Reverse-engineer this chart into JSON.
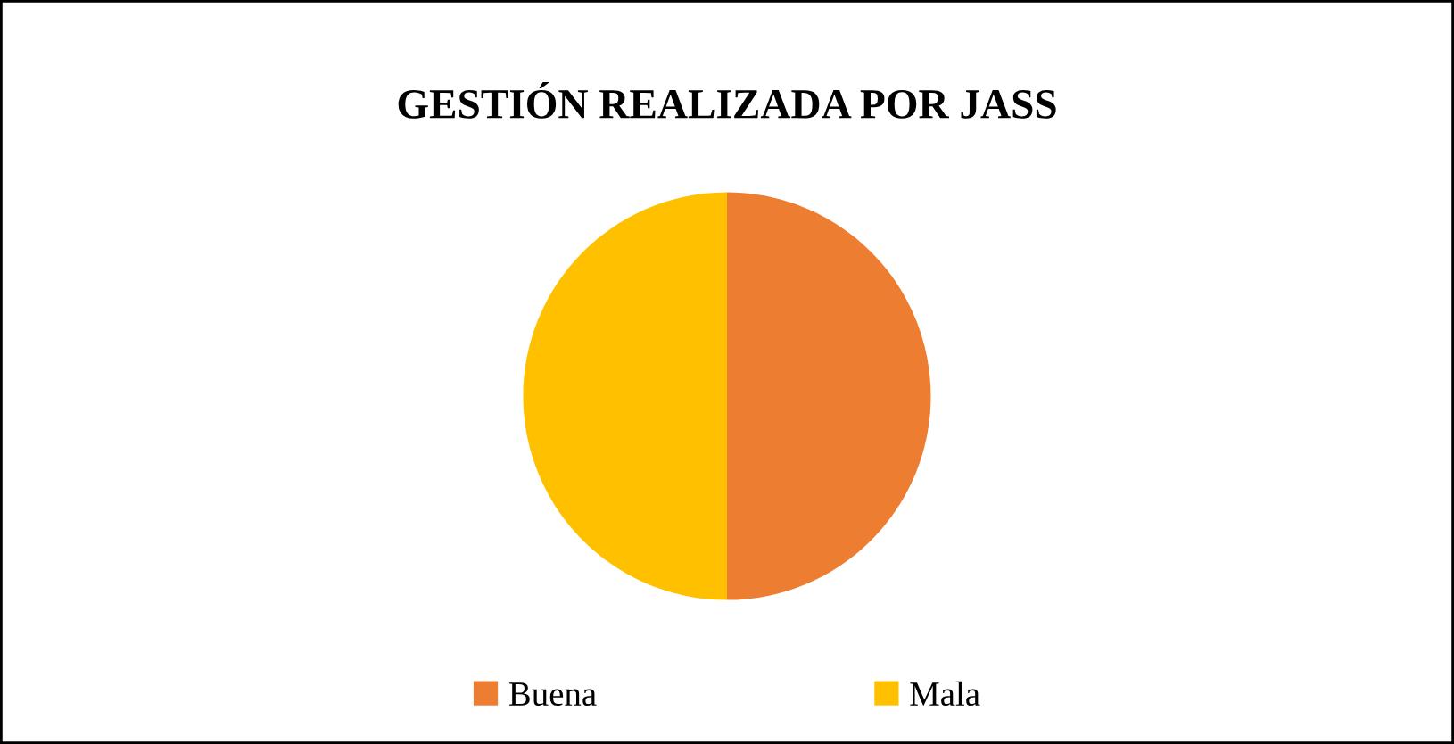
{
  "chart_data": {
    "type": "pie",
    "title": "GESTIÓN REALIZADA POR JASS",
    "categories": [
      "Buena",
      "Mala"
    ],
    "values": [
      50,
      50
    ],
    "colors": [
      "#ed7d31",
      "#ffc000"
    ],
    "legend": "bottom"
  }
}
